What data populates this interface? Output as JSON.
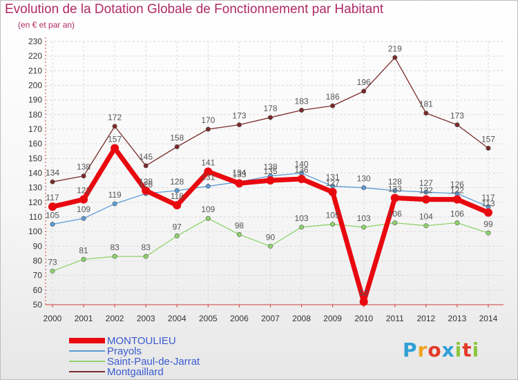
{
  "title": "Evolution de la Dotation Globale de Fonctionnement par Habitant",
  "subtitle": "(en € et par an)",
  "logo": {
    "text": "Proxiti",
    "letter_colors": [
      "#2f9fd6",
      "#f0a21c",
      "#e23a2a",
      "#2f9fd6",
      "#8cc63f",
      "#e23a2a",
      "#8cc63f"
    ]
  },
  "chart_data": {
    "type": "line",
    "title": "Evolution de la Dotation Globale de Fonctionnement par Habitant",
    "subtitle": "(en € et par an)",
    "xlabel": "",
    "ylabel": "",
    "x": [
      "2000",
      "2001",
      "2002",
      "2003",
      "2004",
      "2005",
      "2006",
      "2007",
      "2008",
      "2009",
      "2010",
      "2011",
      "2012",
      "2013",
      "2014"
    ],
    "ylim": [
      50,
      230
    ],
    "yticks": [
      50,
      60,
      70,
      80,
      90,
      100,
      110,
      120,
      130,
      140,
      150,
      160,
      170,
      180,
      190,
      200,
      210,
      220,
      230
    ],
    "grid": true,
    "legend_position": "bottom-left",
    "series": [
      {
        "name": "MONTOULIEU",
        "color": "#e8090f",
        "emphasis": true,
        "values": [
          117,
          122,
          157,
          128,
          118,
          141,
          133,
          135,
          136,
          127,
          52,
          123,
          122,
          122,
          113
        ]
      },
      {
        "name": "Prayols",
        "color": "#5b9bd5",
        "emphasis": false,
        "values": [
          105,
          109,
          119,
          126,
          128,
          131,
          134,
          138,
          140,
          131,
          130,
          128,
          127,
          126,
          117
        ]
      },
      {
        "name": "Saint-Paul-de-Jarrat",
        "color": "#8ed36b",
        "emphasis": false,
        "values": [
          73,
          81,
          83,
          83,
          97,
          109,
          98,
          90,
          103,
          105,
          103,
          106,
          104,
          106,
          99
        ]
      },
      {
        "name": "Montgaillard",
        "color": "#7a2a2a",
        "emphasis": false,
        "values": [
          134,
          138,
          172,
          145,
          158,
          170,
          173,
          178,
          183,
          186,
          196,
          219,
          181,
          173,
          157
        ]
      }
    ]
  }
}
